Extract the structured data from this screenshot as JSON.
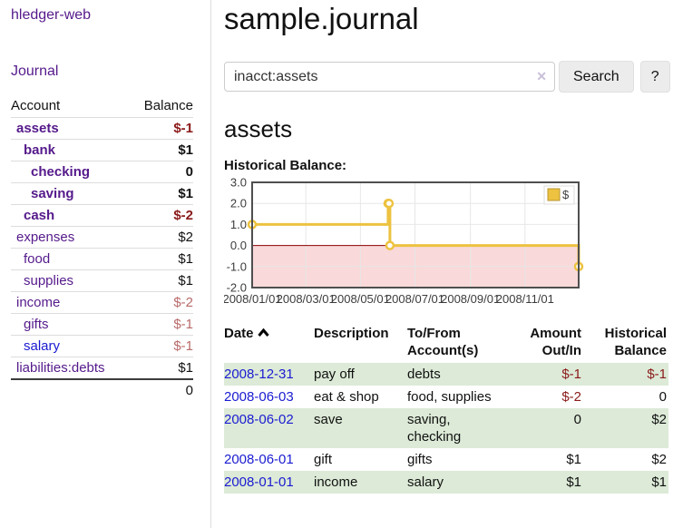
{
  "brand": "hledger-web",
  "nav": {
    "journal": "Journal"
  },
  "sidebar": {
    "account_header": "Account",
    "balance_header": "Balance",
    "accounts": [
      {
        "name": "assets",
        "depth": 0,
        "bold": true,
        "balance": "$-1",
        "neg": "strong",
        "link": "purple"
      },
      {
        "name": "bank",
        "depth": 1,
        "bold": true,
        "balance": "$1",
        "neg": "none",
        "link": "purple"
      },
      {
        "name": "checking",
        "depth": 2,
        "bold": true,
        "balance": "0",
        "neg": "none",
        "link": "purple"
      },
      {
        "name": "saving",
        "depth": 2,
        "bold": true,
        "balance": "$1",
        "neg": "none",
        "link": "purple"
      },
      {
        "name": "cash",
        "depth": 1,
        "bold": true,
        "balance": "$-2",
        "neg": "strong",
        "link": "purple"
      },
      {
        "name": "expenses",
        "depth": 0,
        "bold": false,
        "balance": "$2",
        "neg": "none",
        "link": "purple"
      },
      {
        "name": "food",
        "depth": 1,
        "bold": false,
        "balance": "$1",
        "neg": "none",
        "link": "purple"
      },
      {
        "name": "supplies",
        "depth": 1,
        "bold": false,
        "balance": "$1",
        "neg": "none",
        "link": "purple"
      },
      {
        "name": "income",
        "depth": 0,
        "bold": false,
        "balance": "$-2",
        "neg": "muted",
        "link": "purple"
      },
      {
        "name": "gifts",
        "depth": 1,
        "bold": false,
        "balance": "$-1",
        "neg": "muted",
        "link": "purple"
      },
      {
        "name": "salary",
        "depth": 1,
        "bold": false,
        "balance": "$-1",
        "neg": "muted",
        "link": "blue"
      },
      {
        "name": "liabilities:debts",
        "depth": 0,
        "bold": false,
        "balance": "$1",
        "neg": "none",
        "link": "purple"
      }
    ],
    "total": "0"
  },
  "main": {
    "title": "sample.journal",
    "search": {
      "value": "inacct:assets",
      "clear_icon": "✕",
      "search_button": "Search",
      "help_button": "?"
    },
    "account_heading": "assets",
    "chart_label": "Historical Balance:"
  },
  "chart_data": {
    "type": "line",
    "title": "Historical Balance of assets",
    "step": true,
    "x_unit": "days since 2008-01-01",
    "xlim": [
      0,
      365
    ],
    "ylim": [
      -2,
      3
    ],
    "series": [
      {
        "name": "$",
        "color": "#edc240",
        "points": [
          [
            0,
            1
          ],
          [
            152,
            2
          ],
          [
            153,
            2
          ],
          [
            154,
            0
          ],
          [
            365,
            -1
          ]
        ],
        "point_dates": [
          "2008-01-01",
          "2008-06-01",
          "2008-06-02",
          "2008-06-03",
          "2008-12-31"
        ]
      }
    ],
    "x_ticks": [
      [
        0,
        "2008/01/01"
      ],
      [
        60,
        "2008/03/01"
      ],
      [
        121,
        "2008/05/01"
      ],
      [
        182,
        "2008/07/01"
      ],
      [
        244,
        "2008/09/01"
      ],
      [
        305,
        "2008/11/01"
      ]
    ],
    "y_ticks": [
      "3.0",
      "2.0",
      "1.0",
      "0.0",
      "-1.0",
      "-2.0"
    ],
    "legend": {
      "label": "$",
      "position": "top-right"
    },
    "grid": true,
    "colors": {
      "line": "#edc240",
      "marker_fill": "#ffffff",
      "negative_region": "#f9d9d9",
      "zero_line": "#8b0000",
      "grid": "#e7e7e7",
      "border": "#4f4f4f"
    }
  },
  "register": {
    "columns": {
      "date": "Date",
      "description": "Description",
      "accounts": "To/From Account(s)",
      "amount": "Amount Out/In",
      "balance": "Historical Balance"
    },
    "sort": "ascending",
    "rows": [
      {
        "date": "2008-12-31",
        "description": "pay off",
        "accounts": "debts",
        "amount": "$-1",
        "amount_neg": true,
        "balance": "$-1",
        "balance_neg": true
      },
      {
        "date": "2008-06-03",
        "description": "eat & shop",
        "accounts": "food, supplies",
        "amount": "$-2",
        "amount_neg": true,
        "balance": "0",
        "balance_neg": false
      },
      {
        "date": "2008-06-02",
        "description": "save",
        "accounts": "saving, checking",
        "amount": "0",
        "amount_neg": false,
        "balance": "$2",
        "balance_neg": false
      },
      {
        "date": "2008-06-01",
        "description": "gift",
        "accounts": "gifts",
        "amount": "$1",
        "amount_neg": false,
        "balance": "$2",
        "balance_neg": false
      },
      {
        "date": "2008-01-01",
        "description": "income",
        "accounts": "salary",
        "amount": "$1",
        "amount_neg": false,
        "balance": "$1",
        "balance_neg": false
      }
    ]
  }
}
